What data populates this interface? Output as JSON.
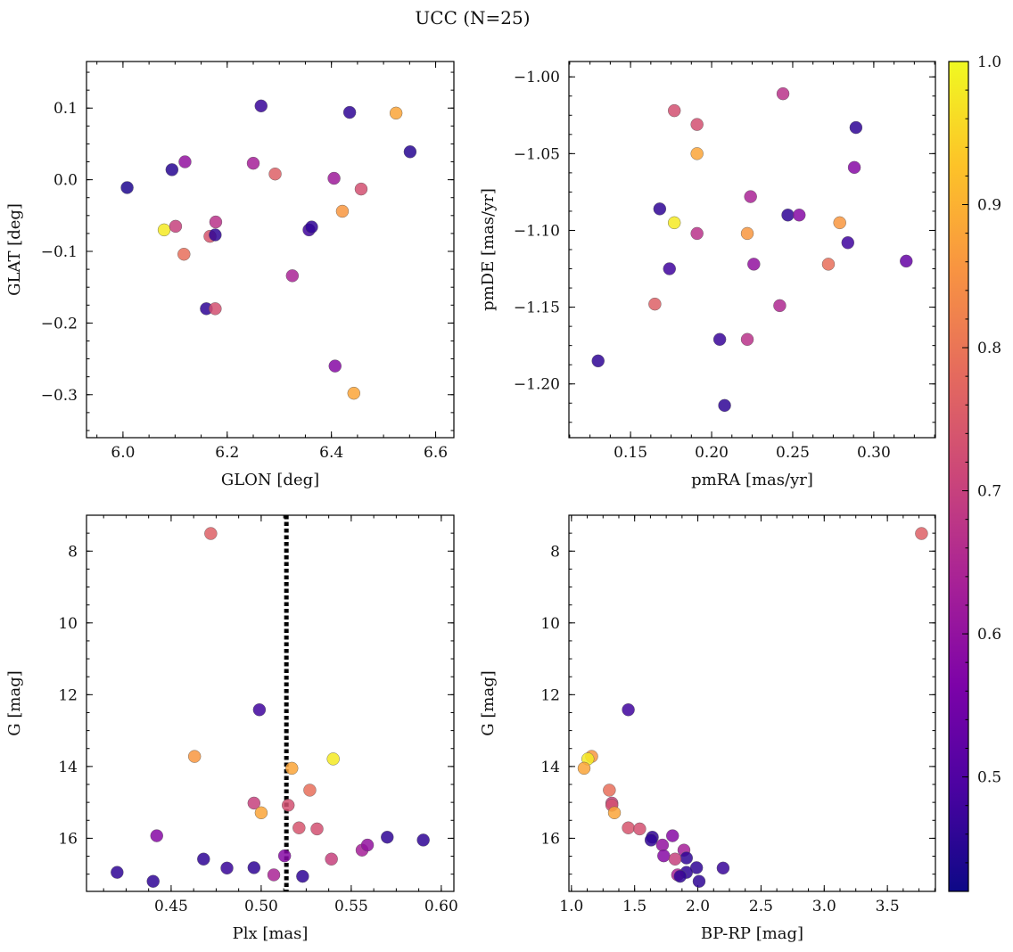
{
  "figure": {
    "title": "UCC (N=25)"
  },
  "colorbar": {
    "vmin": 0.42,
    "vmax": 1.0,
    "ticks": [
      0.5,
      0.6,
      0.7,
      0.8,
      0.9,
      1.0
    ],
    "tick_labels": [
      "0.5",
      "0.6",
      "0.7",
      "0.8",
      "0.9",
      "1.0"
    ],
    "colormap": "plasma"
  },
  "chart_data": [
    {
      "type": "scatter",
      "xlabel": "GLON [deg]",
      "ylabel": "GLAT [deg]",
      "xlim": [
        5.93,
        6.635
      ],
      "ylim": [
        -0.36,
        0.165
      ],
      "xticks": [
        6.0,
        6.2,
        6.4,
        6.6
      ],
      "xtick_labels": [
        "6.0",
        "6.2",
        "6.4",
        "6.6"
      ],
      "yticks": [
        0.1,
        0.0,
        -0.1,
        -0.2,
        -0.3
      ],
      "ytick_labels": [
        "0.1",
        "0.0",
        "−0.1",
        "−0.2",
        "−0.3"
      ],
      "points": [
        {
          "x": 6.008,
          "y": -0.011,
          "c": 0.44
        },
        {
          "x": 6.094,
          "y": 0.014,
          "c": 0.45
        },
        {
          "x": 6.079,
          "y": -0.07,
          "c": 0.98
        },
        {
          "x": 6.101,
          "y": -0.065,
          "c": 0.7
        },
        {
          "x": 6.119,
          "y": 0.025,
          "c": 0.6
        },
        {
          "x": 6.117,
          "y": -0.104,
          "c": 0.79
        },
        {
          "x": 6.16,
          "y": -0.18,
          "c": 0.46
        },
        {
          "x": 6.167,
          "y": -0.079,
          "c": 0.74
        },
        {
          "x": 6.177,
          "y": -0.077,
          "c": 0.46
        },
        {
          "x": 6.178,
          "y": -0.059,
          "c": 0.67
        },
        {
          "x": 6.177,
          "y": -0.18,
          "c": 0.73
        },
        {
          "x": 6.25,
          "y": 0.023,
          "c": 0.63
        },
        {
          "x": 6.265,
          "y": 0.103,
          "c": 0.47
        },
        {
          "x": 6.292,
          "y": 0.008,
          "c": 0.76
        },
        {
          "x": 6.325,
          "y": -0.134,
          "c": 0.64
        },
        {
          "x": 6.357,
          "y": -0.07,
          "c": 0.48
        },
        {
          "x": 6.362,
          "y": -0.066,
          "c": 0.46
        },
        {
          "x": 6.405,
          "y": 0.002,
          "c": 0.62
        },
        {
          "x": 6.407,
          "y": -0.26,
          "c": 0.58
        },
        {
          "x": 6.421,
          "y": -0.044,
          "c": 0.86
        },
        {
          "x": 6.435,
          "y": 0.094,
          "c": 0.46
        },
        {
          "x": 6.443,
          "y": -0.298,
          "c": 0.88
        },
        {
          "x": 6.457,
          "y": -0.013,
          "c": 0.73
        },
        {
          "x": 6.524,
          "y": 0.093,
          "c": 0.88
        },
        {
          "x": 6.551,
          "y": 0.039,
          "c": 0.45
        }
      ]
    },
    {
      "type": "scatter",
      "xlabel": "pmRA [mas/yr]",
      "ylabel": "pmDE [mas/yr]",
      "xlim": [
        0.112,
        0.338
      ],
      "ylim": [
        -1.235,
        -0.99
      ],
      "xticks": [
        0.15,
        0.2,
        0.25,
        0.3
      ],
      "xtick_labels": [
        "0.15",
        "0.20",
        "0.25",
        "0.30"
      ],
      "yticks": [
        -1.0,
        -1.05,
        -1.1,
        -1.15,
        -1.2
      ],
      "ytick_labels": [
        "−1.00",
        "−1.05",
        "−1.10",
        "−1.15",
        "−1.20"
      ],
      "points": [
        {
          "x": 0.13,
          "y": -1.185,
          "c": 0.46
        },
        {
          "x": 0.165,
          "y": -1.148,
          "c": 0.76
        },
        {
          "x": 0.168,
          "y": -1.086,
          "c": 0.46
        },
        {
          "x": 0.174,
          "y": -1.125,
          "c": 0.48
        },
        {
          "x": 0.177,
          "y": -1.095,
          "c": 0.98
        },
        {
          "x": 0.177,
          "y": -1.022,
          "c": 0.73
        },
        {
          "x": 0.191,
          "y": -1.031,
          "c": 0.73
        },
        {
          "x": 0.191,
          "y": -1.05,
          "c": 0.88
        },
        {
          "x": 0.191,
          "y": -1.102,
          "c": 0.67
        },
        {
          "x": 0.205,
          "y": -1.171,
          "c": 0.47
        },
        {
          "x": 0.208,
          "y": -1.214,
          "c": 0.46
        },
        {
          "x": 0.222,
          "y": -1.171,
          "c": 0.67
        },
        {
          "x": 0.222,
          "y": -1.102,
          "c": 0.86
        },
        {
          "x": 0.224,
          "y": -1.078,
          "c": 0.64
        },
        {
          "x": 0.226,
          "y": -1.122,
          "c": 0.6
        },
        {
          "x": 0.242,
          "y": -1.149,
          "c": 0.65
        },
        {
          "x": 0.244,
          "y": -1.011,
          "c": 0.67
        },
        {
          "x": 0.247,
          "y": -1.09,
          "c": 0.46
        },
        {
          "x": 0.254,
          "y": -1.09,
          "c": 0.58
        },
        {
          "x": 0.272,
          "y": -1.122,
          "c": 0.79
        },
        {
          "x": 0.279,
          "y": -1.095,
          "c": 0.86
        },
        {
          "x": 0.284,
          "y": -1.108,
          "c": 0.48
        },
        {
          "x": 0.288,
          "y": -1.059,
          "c": 0.58
        },
        {
          "x": 0.289,
          "y": -1.033,
          "c": 0.46
        },
        {
          "x": 0.32,
          "y": -1.12,
          "c": 0.53
        }
      ]
    },
    {
      "type": "scatter",
      "xlabel": "Plx [mas]",
      "ylabel": "G [mag]",
      "xlim": [
        0.403,
        0.607
      ],
      "ylim": [
        17.48,
        7.0
      ],
      "y_inverted": true,
      "xticks": [
        0.45,
        0.5,
        0.55,
        0.6
      ],
      "xtick_labels": [
        "0.45",
        "0.50",
        "0.55",
        "0.60"
      ],
      "yticks": [
        8,
        10,
        12,
        14,
        16
      ],
      "ytick_labels": [
        "8",
        "10",
        "12",
        "14",
        "16"
      ],
      "vline": {
        "x": 0.514,
        "style": "dotted",
        "color": "#000000"
      },
      "points": [
        {
          "x": 0.42,
          "y": 16.95,
          "c": 0.46
        },
        {
          "x": 0.44,
          "y": 17.2,
          "c": 0.46
        },
        {
          "x": 0.442,
          "y": 15.93,
          "c": 0.58
        },
        {
          "x": 0.463,
          "y": 13.72,
          "c": 0.86
        },
        {
          "x": 0.468,
          "y": 16.58,
          "c": 0.46
        },
        {
          "x": 0.472,
          "y": 7.51,
          "c": 0.76
        },
        {
          "x": 0.481,
          "y": 16.83,
          "c": 0.47
        },
        {
          "x": 0.496,
          "y": 16.82,
          "c": 0.46
        },
        {
          "x": 0.496,
          "y": 15.02,
          "c": 0.7
        },
        {
          "x": 0.499,
          "y": 12.42,
          "c": 0.48
        },
        {
          "x": 0.5,
          "y": 15.29,
          "c": 0.88
        },
        {
          "x": 0.507,
          "y": 17.02,
          "c": 0.64
        },
        {
          "x": 0.513,
          "y": 16.49,
          "c": 0.58
        },
        {
          "x": 0.515,
          "y": 15.08,
          "c": 0.73
        },
        {
          "x": 0.517,
          "y": 14.05,
          "c": 0.88
        },
        {
          "x": 0.521,
          "y": 15.71,
          "c": 0.74
        },
        {
          "x": 0.523,
          "y": 17.06,
          "c": 0.46
        },
        {
          "x": 0.527,
          "y": 14.66,
          "c": 0.79
        },
        {
          "x": 0.531,
          "y": 15.74,
          "c": 0.73
        },
        {
          "x": 0.539,
          "y": 16.58,
          "c": 0.7
        },
        {
          "x": 0.54,
          "y": 13.79,
          "c": 0.98
        },
        {
          "x": 0.556,
          "y": 16.33,
          "c": 0.63
        },
        {
          "x": 0.559,
          "y": 16.19,
          "c": 0.6
        },
        {
          "x": 0.57,
          "y": 15.97,
          "c": 0.46
        },
        {
          "x": 0.59,
          "y": 16.05,
          "c": 0.46
        }
      ]
    },
    {
      "type": "scatter",
      "xlabel": "BP-RP [mag]",
      "ylabel": "G [mag]",
      "xlim": [
        0.98,
        3.88
      ],
      "ylim": [
        17.48,
        7.0
      ],
      "y_inverted": true,
      "xticks": [
        1.0,
        1.5,
        2.0,
        2.5,
        3.0,
        3.5
      ],
      "xtick_labels": [
        "1.0",
        "1.5",
        "2.0",
        "2.5",
        "3.0",
        "3.5"
      ],
      "yticks": [
        8,
        10,
        12,
        14,
        16
      ],
      "ytick_labels": [
        "8",
        "10",
        "12",
        "14",
        "16"
      ],
      "points": [
        {
          "x": 3.77,
          "y": 7.51,
          "c": 0.76
        },
        {
          "x": 1.45,
          "y": 12.42,
          "c": 0.48
        },
        {
          "x": 1.16,
          "y": 13.72,
          "c": 0.86
        },
        {
          "x": 1.13,
          "y": 13.79,
          "c": 0.98
        },
        {
          "x": 1.1,
          "y": 14.05,
          "c": 0.88
        },
        {
          "x": 1.3,
          "y": 14.66,
          "c": 0.79
        },
        {
          "x": 1.32,
          "y": 15.02,
          "c": 0.7
        },
        {
          "x": 1.32,
          "y": 15.08,
          "c": 0.73
        },
        {
          "x": 1.34,
          "y": 15.29,
          "c": 0.88
        },
        {
          "x": 1.45,
          "y": 15.71,
          "c": 0.74
        },
        {
          "x": 1.54,
          "y": 15.74,
          "c": 0.73
        },
        {
          "x": 1.8,
          "y": 15.93,
          "c": 0.58
        },
        {
          "x": 1.64,
          "y": 15.97,
          "c": 0.46
        },
        {
          "x": 1.63,
          "y": 16.05,
          "c": 0.46
        },
        {
          "x": 1.72,
          "y": 16.19,
          "c": 0.6
        },
        {
          "x": 1.89,
          "y": 16.33,
          "c": 0.63
        },
        {
          "x": 1.91,
          "y": 16.55,
          "c": 0.46
        },
        {
          "x": 1.73,
          "y": 16.49,
          "c": 0.58
        },
        {
          "x": 1.82,
          "y": 16.58,
          "c": 0.7
        },
        {
          "x": 2.2,
          "y": 16.83,
          "c": 0.47
        },
        {
          "x": 1.99,
          "y": 16.82,
          "c": 0.46
        },
        {
          "x": 1.91,
          "y": 16.95,
          "c": 0.46
        },
        {
          "x": 1.84,
          "y": 17.02,
          "c": 0.64
        },
        {
          "x": 1.86,
          "y": 17.06,
          "c": 0.46
        },
        {
          "x": 2.01,
          "y": 17.2,
          "c": 0.46
        }
      ]
    }
  ]
}
